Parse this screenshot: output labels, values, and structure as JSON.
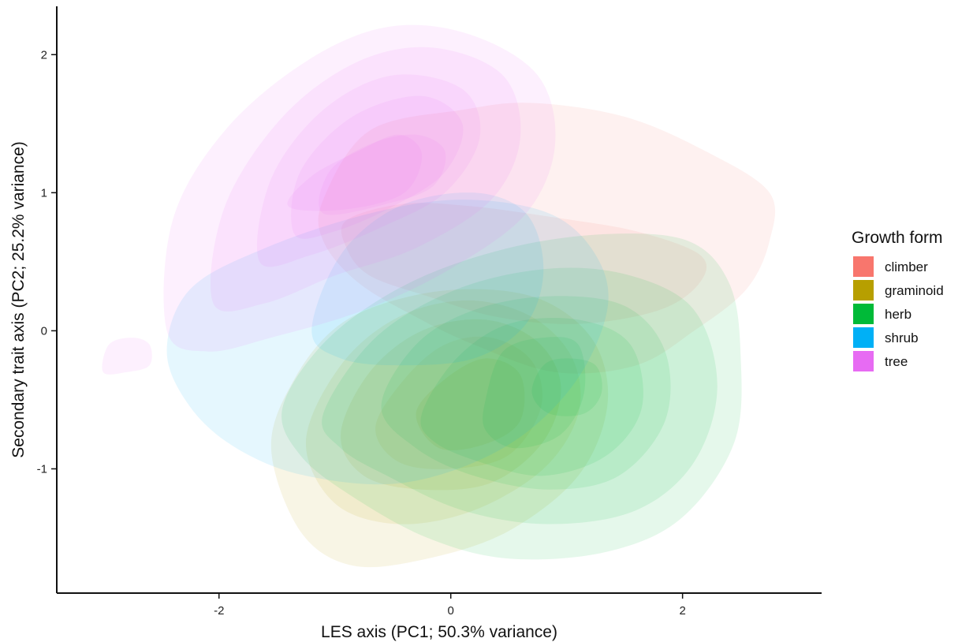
{
  "chart_data": {
    "type": "density-contour",
    "title": "",
    "xlabel": "LES axis (PC1; 50.3% variance)",
    "ylabel": "Secondary trait axis (PC2; 25.2% variance)",
    "xlim": [
      -3.4,
      3.2
    ],
    "ylim": [
      -1.9,
      2.35
    ],
    "x_ticks": [
      -2,
      0,
      2
    ],
    "x_tick_labels": [
      "-2",
      "0",
      "2"
    ],
    "y_ticks": [
      -1,
      0,
      1,
      2
    ],
    "y_tick_labels": [
      "-1",
      "0",
      "1",
      "2"
    ],
    "grid": false,
    "legend": {
      "title": "Growth form",
      "position": "right",
      "entries": [
        "climber",
        "graminoid",
        "herb",
        "shrub",
        "tree"
      ]
    },
    "series": [
      {
        "name": "climber",
        "color": "#F8766D",
        "levels": [
          [
            [
              -1.1,
              0.95
            ],
            [
              -0.7,
              1.45
            ],
            [
              0.1,
              1.6
            ],
            [
              0.7,
              1.65
            ],
            [
              1.5,
              1.55
            ],
            [
              2.2,
              1.3
            ],
            [
              2.75,
              1.0
            ],
            [
              2.75,
              0.65
            ],
            [
              2.55,
              0.3
            ],
            [
              2.1,
              0.0
            ],
            [
              1.6,
              -0.25
            ],
            [
              0.9,
              -0.3
            ],
            [
              0.2,
              -0.1
            ],
            [
              -0.3,
              0.1
            ],
            [
              -0.8,
              0.35
            ],
            [
              -1.1,
              0.65
            ]
          ],
          [
            [
              -0.9,
              0.8
            ],
            [
              -0.4,
              0.92
            ],
            [
              0.2,
              0.9
            ],
            [
              0.9,
              0.82
            ],
            [
              1.6,
              0.72
            ],
            [
              2.15,
              0.55
            ],
            [
              2.15,
              0.35
            ],
            [
              1.8,
              0.15
            ],
            [
              1.1,
              0.05
            ],
            [
              0.4,
              0.1
            ],
            [
              -0.2,
              0.25
            ],
            [
              -0.7,
              0.4
            ],
            [
              -0.9,
              0.6
            ]
          ]
        ]
      },
      {
        "name": "graminoid",
        "color": "#B79F00",
        "levels": [
          [
            [
              -1.55,
              -0.85
            ],
            [
              -1.35,
              -0.35
            ],
            [
              -0.95,
              0.05
            ],
            [
              -0.35,
              0.25
            ],
            [
              0.3,
              0.3
            ],
            [
              0.85,
              0.2
            ],
            [
              1.25,
              -0.1
            ],
            [
              1.35,
              -0.55
            ],
            [
              1.1,
              -1.05
            ],
            [
              0.5,
              -1.45
            ],
            [
              -0.2,
              -1.65
            ],
            [
              -0.85,
              -1.7
            ],
            [
              -1.3,
              -1.45
            ]
          ],
          [
            [
              -1.25,
              -0.8
            ],
            [
              -0.95,
              -0.25
            ],
            [
              -0.45,
              0.1
            ],
            [
              0.15,
              0.22
            ],
            [
              0.7,
              0.1
            ],
            [
              1.05,
              -0.2
            ],
            [
              1.1,
              -0.6
            ],
            [
              0.8,
              -1.0
            ],
            [
              0.2,
              -1.3
            ],
            [
              -0.45,
              -1.4
            ],
            [
              -1.0,
              -1.25
            ]
          ],
          [
            [
              -0.95,
              -0.75
            ],
            [
              -0.7,
              -0.3
            ],
            [
              -0.25,
              0.0
            ],
            [
              0.3,
              0.08
            ],
            [
              0.75,
              -0.08
            ],
            [
              0.95,
              -0.4
            ],
            [
              0.8,
              -0.8
            ],
            [
              0.35,
              -1.1
            ],
            [
              -0.25,
              -1.15
            ],
            [
              -0.75,
              -1.05
            ]
          ],
          [
            [
              -0.65,
              -0.7
            ],
            [
              -0.4,
              -0.35
            ],
            [
              -0.05,
              -0.1
            ],
            [
              0.35,
              -0.05
            ],
            [
              0.7,
              -0.22
            ],
            [
              0.78,
              -0.55
            ],
            [
              0.5,
              -0.9
            ],
            [
              0.0,
              -1.0
            ],
            [
              -0.45,
              -0.95
            ]
          ],
          [
            [
              -0.3,
              -0.6
            ],
            [
              -0.05,
              -0.35
            ],
            [
              0.3,
              -0.2
            ],
            [
              0.6,
              -0.32
            ],
            [
              0.6,
              -0.65
            ],
            [
              0.3,
              -0.82
            ],
            [
              -0.1,
              -0.85
            ]
          ]
        ]
      },
      {
        "name": "herb",
        "color": "#00BA38",
        "levels": [
          [
            [
              -1.45,
              -0.55
            ],
            [
              -1.05,
              -0.05
            ],
            [
              -0.35,
              0.35
            ],
            [
              0.5,
              0.6
            ],
            [
              1.35,
              0.7
            ],
            [
              2.05,
              0.65
            ],
            [
              2.4,
              0.35
            ],
            [
              2.5,
              -0.15
            ],
            [
              2.45,
              -0.8
            ],
            [
              2.0,
              -1.35
            ],
            [
              1.35,
              -1.6
            ],
            [
              0.5,
              -1.65
            ],
            [
              -0.2,
              -1.5
            ],
            [
              -0.85,
              -1.2
            ],
            [
              -1.3,
              -0.9
            ]
          ],
          [
            [
              -1.1,
              -0.6
            ],
            [
              -0.65,
              -0.05
            ],
            [
              0.05,
              0.3
            ],
            [
              0.85,
              0.45
            ],
            [
              1.55,
              0.4
            ],
            [
              2.1,
              0.15
            ],
            [
              2.3,
              -0.4
            ],
            [
              2.1,
              -0.95
            ],
            [
              1.6,
              -1.3
            ],
            [
              0.85,
              -1.4
            ],
            [
              0.1,
              -1.3
            ],
            [
              -0.55,
              -1.05
            ],
            [
              -0.95,
              -0.85
            ]
          ],
          [
            [
              -0.6,
              -0.55
            ],
            [
              -0.3,
              -0.1
            ],
            [
              0.2,
              0.15
            ],
            [
              0.85,
              0.25
            ],
            [
              1.5,
              0.18
            ],
            [
              1.85,
              -0.15
            ],
            [
              1.85,
              -0.65
            ],
            [
              1.45,
              -1.05
            ],
            [
              0.85,
              -1.15
            ],
            [
              0.2,
              -1.05
            ],
            [
              -0.3,
              -0.85
            ]
          ],
          [
            [
              -0.25,
              -0.6
            ],
            [
              0.05,
              -0.2
            ],
            [
              0.5,
              0.05
            ],
            [
              1.1,
              0.08
            ],
            [
              1.55,
              -0.1
            ],
            [
              1.65,
              -0.55
            ],
            [
              1.35,
              -0.9
            ],
            [
              0.8,
              -1.05
            ],
            [
              0.25,
              -0.95
            ],
            [
              -0.15,
              -0.8
            ]
          ],
          [
            [
              0.3,
              -0.5
            ],
            [
              0.45,
              -0.15
            ],
            [
              0.8,
              -0.05
            ],
            [
              1.1,
              -0.1
            ],
            [
              1.15,
              -0.45
            ],
            [
              0.95,
              -0.75
            ],
            [
              0.55,
              -0.85
            ],
            [
              0.3,
              -0.72
            ]
          ],
          [
            [
              0.7,
              -0.45
            ],
            [
              0.8,
              -0.25
            ],
            [
              1.0,
              -0.2
            ],
            [
              1.25,
              -0.25
            ],
            [
              1.3,
              -0.45
            ],
            [
              1.15,
              -0.6
            ],
            [
              0.85,
              -0.6
            ]
          ]
        ]
      },
      {
        "name": "shrub",
        "color": "#00B0F6",
        "levels": [
          [
            [
              -2.45,
              -0.15
            ],
            [
              -2.25,
              0.3
            ],
            [
              -1.6,
              0.6
            ],
            [
              -0.7,
              0.85
            ],
            [
              0.1,
              0.95
            ],
            [
              0.85,
              0.85
            ],
            [
              1.25,
              0.55
            ],
            [
              1.35,
              0.15
            ],
            [
              1.05,
              -0.4
            ],
            [
              0.45,
              -0.85
            ],
            [
              -0.4,
              -1.1
            ],
            [
              -1.25,
              -1.05
            ],
            [
              -1.85,
              -0.85
            ],
            [
              -2.25,
              -0.55
            ]
          ],
          [
            [
              -1.2,
              0.0
            ],
            [
              -0.95,
              0.55
            ],
            [
              -0.45,
              0.9
            ],
            [
              0.2,
              1.0
            ],
            [
              0.65,
              0.85
            ],
            [
              0.8,
              0.45
            ],
            [
              0.65,
              0.05
            ],
            [
              0.2,
              -0.2
            ],
            [
              -0.45,
              -0.25
            ],
            [
              -0.95,
              -0.2
            ]
          ]
        ]
      },
      {
        "name": "tree",
        "color": "#E76BF3",
        "levels": [
          [
            [
              -2.45,
              0.0
            ],
            [
              -2.4,
              0.8
            ],
            [
              -1.95,
              1.45
            ],
            [
              -1.25,
              1.95
            ],
            [
              -0.55,
              2.2
            ],
            [
              0.15,
              2.15
            ],
            [
              0.75,
              1.85
            ],
            [
              0.9,
              1.35
            ],
            [
              0.65,
              0.85
            ],
            [
              0.0,
              0.45
            ],
            [
              -0.75,
              0.15
            ],
            [
              -1.55,
              -0.05
            ],
            [
              -2.1,
              -0.15
            ]
          ],
          [
            [
              -2.05,
              0.2
            ],
            [
              -1.95,
              0.9
            ],
            [
              -1.45,
              1.55
            ],
            [
              -0.8,
              1.95
            ],
            [
              -0.15,
              2.05
            ],
            [
              0.45,
              1.85
            ],
            [
              0.6,
              1.4
            ],
            [
              0.35,
              0.95
            ],
            [
              -0.3,
              0.6
            ],
            [
              -1.0,
              0.4
            ],
            [
              -1.6,
              0.2
            ]
          ],
          [
            [
              -1.65,
              0.5
            ],
            [
              -1.55,
              1.1
            ],
            [
              -1.1,
              1.6
            ],
            [
              -0.5,
              1.85
            ],
            [
              0.1,
              1.75
            ],
            [
              0.25,
              1.4
            ],
            [
              -0.05,
              1.0
            ],
            [
              -0.6,
              0.75
            ],
            [
              -1.2,
              0.55
            ]
          ],
          [
            [
              -1.35,
              0.7
            ],
            [
              -1.3,
              1.15
            ],
            [
              -0.85,
              1.55
            ],
            [
              -0.25,
              1.7
            ],
            [
              0.1,
              1.5
            ],
            [
              -0.05,
              1.15
            ],
            [
              -0.5,
              0.9
            ],
            [
              -1.0,
              0.72
            ]
          ],
          [
            [
              -1.1,
              0.85
            ],
            [
              -1.05,
              1.15
            ],
            [
              -0.7,
              1.35
            ],
            [
              -0.3,
              1.42
            ],
            [
              -0.05,
              1.3
            ],
            [
              -0.15,
              1.05
            ],
            [
              -0.55,
              0.92
            ]
          ],
          [
            [
              -1.4,
              0.9
            ],
            [
              -1.2,
              1.12
            ],
            [
              -0.8,
              1.3
            ],
            [
              -0.45,
              1.42
            ],
            [
              -0.25,
              1.28
            ],
            [
              -0.4,
              1.0
            ],
            [
              -0.9,
              0.88
            ]
          ]
        ]
      },
      {
        "name": "tree",
        "color": "#E76BF3",
        "levels": [
          [
            [
              -3.0,
              -0.3
            ],
            [
              -2.95,
              -0.1
            ],
            [
              -2.75,
              -0.05
            ],
            [
              -2.6,
              -0.1
            ],
            [
              -2.6,
              -0.25
            ],
            [
              -2.8,
              -0.3
            ]
          ]
        ]
      }
    ]
  }
}
